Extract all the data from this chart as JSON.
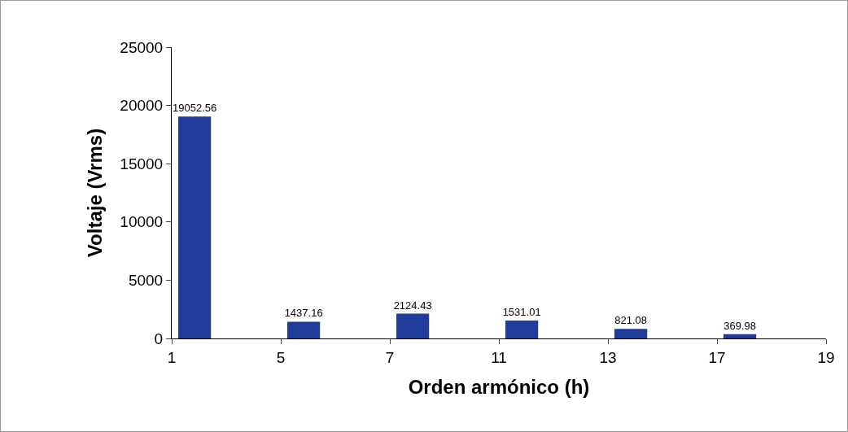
{
  "chart_data": {
    "type": "bar",
    "xlabel": "Orden armónico (h)",
    "ylabel": "Voltaje (Vrms)",
    "categories": [
      "1",
      "5",
      "7",
      "11",
      "13",
      "17",
      "19"
    ],
    "values": [
      19052.56,
      1437.16,
      2124.43,
      1531.01,
      821.08,
      369.98,
      null
    ],
    "color": "#1f3c99",
    "ylim": [
      0,
      25000
    ],
    "yticks": [
      0,
      5000,
      10000,
      15000,
      20000,
      25000
    ],
    "grid": false,
    "data_labels": true
  }
}
